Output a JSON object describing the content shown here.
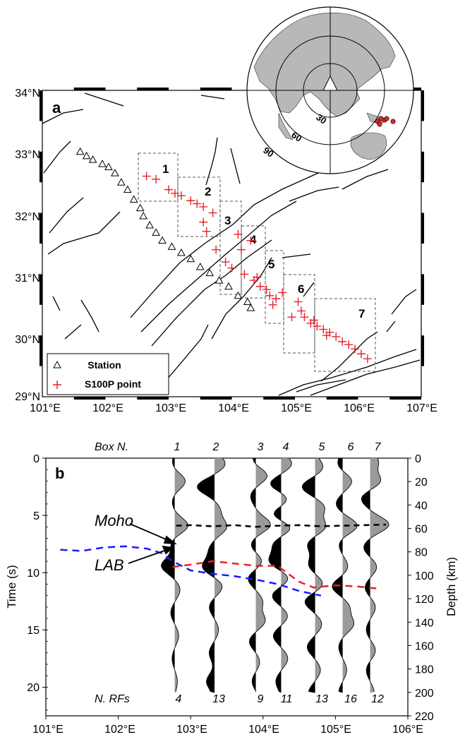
{
  "panel_a": {
    "label": "a",
    "lat_ticks": [
      "29°N",
      "30°N",
      "31°N",
      "32°N",
      "33°N",
      "34°N"
    ],
    "lon_ticks": [
      "101°E",
      "102°E",
      "103°E",
      "104°E",
      "105°E",
      "106°E",
      "107°E"
    ],
    "legend": {
      "station": "Station",
      "point": "S100P point"
    },
    "boxes": [
      "1",
      "2",
      "3",
      "4",
      "5",
      "6",
      "7"
    ],
    "inset": {
      "ring_labels": [
        "30",
        "60",
        "90"
      ]
    }
  },
  "panel_b": {
    "label": "b",
    "box_header": "Box N.",
    "box_numbers": [
      "1",
      "2",
      "3",
      "4",
      "5",
      "6",
      "7"
    ],
    "rf_header": "N. RFs",
    "rf_counts": [
      "4",
      "13",
      "9",
      "11",
      "13",
      "16",
      "12"
    ],
    "moho_label": "Moho",
    "lab_label": "LAB",
    "ylabel_left": "Time (s)",
    "ylabel_right": "Depth (km)",
    "time_ticks": [
      "0",
      "5",
      "10",
      "15",
      "20"
    ],
    "depth_ticks": [
      "0",
      "20",
      "40",
      "60",
      "80",
      "100",
      "120",
      "140",
      "160",
      "180",
      "200",
      "220"
    ],
    "lon_ticks": [
      "101°E",
      "102°E",
      "103°E",
      "104°E",
      "105°E",
      "106°E"
    ]
  },
  "colors": {
    "red": "#e8212b",
    "blue": "#1a1aff",
    "gray": "#9a9a9a",
    "black": "#000000"
  },
  "chart_data": [
    {
      "type": "scatter",
      "title": "",
      "xlabel": "",
      "ylabel": "",
      "xlim": [
        101,
        107
      ],
      "ylim": [
        29,
        34
      ],
      "series": [
        {
          "name": "Station",
          "points": [
            [
              101.6,
              33.0
            ],
            [
              101.7,
              32.93
            ],
            [
              101.8,
              32.87
            ],
            [
              101.95,
              32.8
            ],
            [
              102.05,
              32.75
            ],
            [
              102.15,
              32.65
            ],
            [
              102.25,
              32.5
            ],
            [
              102.35,
              32.38
            ],
            [
              102.45,
              32.22
            ],
            [
              102.55,
              32.08
            ],
            [
              102.6,
              31.95
            ],
            [
              102.7,
              31.8
            ],
            [
              102.8,
              31.68
            ],
            [
              102.9,
              31.55
            ],
            [
              103.05,
              31.45
            ],
            [
              103.2,
              31.35
            ],
            [
              103.35,
              31.25
            ],
            [
              103.5,
              31.12
            ],
            [
              103.65,
              31.02
            ],
            [
              103.8,
              30.9
            ],
            [
              103.95,
              30.8
            ],
            [
              104.1,
              30.65
            ],
            [
              104.25,
              30.55
            ],
            [
              104.3,
              30.45
            ]
          ]
        },
        {
          "name": "S100P point",
          "points": [
            [
              102.65,
              32.6
            ],
            [
              102.8,
              32.55
            ],
            [
              103.0,
              32.38
            ],
            [
              103.1,
              32.32
            ],
            [
              103.2,
              32.28
            ],
            [
              103.35,
              32.2
            ],
            [
              103.45,
              32.15
            ],
            [
              103.55,
              32.1
            ],
            [
              103.7,
              32.0
            ],
            [
              103.55,
              31.85
            ],
            [
              103.6,
              31.7
            ],
            [
              103.75,
              31.4
            ],
            [
              103.9,
              31.2
            ],
            [
              104.0,
              31.1
            ],
            [
              104.1,
              31.65
            ],
            [
              104.15,
              31.4
            ],
            [
              104.3,
              31.55
            ],
            [
              104.2,
              31.0
            ],
            [
              104.35,
              30.9
            ],
            [
              104.45,
              30.8
            ],
            [
              104.55,
              30.75
            ],
            [
              104.6,
              30.65
            ],
            [
              104.7,
              30.6
            ],
            [
              104.8,
              30.7
            ],
            [
              104.95,
              30.3
            ],
            [
              105.05,
              30.55
            ],
            [
              105.15,
              30.3
            ],
            [
              105.25,
              30.2
            ],
            [
              105.35,
              30.15
            ],
            [
              105.45,
              30.1
            ],
            [
              105.55,
              30.05
            ],
            [
              105.65,
              29.98
            ],
            [
              105.75,
              29.9
            ],
            [
              105.85,
              29.85
            ],
            [
              105.95,
              29.78
            ],
            [
              106.05,
              29.7
            ],
            [
              106.15,
              29.62
            ],
            [
              104.4,
              30.95
            ],
            [
              104.65,
              30.5
            ],
            [
              105.1,
              30.4
            ],
            [
              105.3,
              30.25
            ],
            [
              105.5,
              30.0
            ]
          ]
        }
      ]
    },
    {
      "type": "line",
      "title": "",
      "xlabel": "",
      "ylabel": "Time (s)",
      "xlim": [
        101,
        106
      ],
      "ylim": [
        0,
        22.5
      ],
      "y2_label": "Depth (km)",
      "y2lim": [
        0,
        220
      ],
      "series": [
        {
          "name": "Moho",
          "x": [
            102.8,
            103.0,
            103.3,
            103.6,
            103.9,
            104.2,
            104.5,
            104.8,
            105.1,
            105.4,
            105.7
          ],
          "y": [
            5.9,
            5.85,
            5.95,
            5.85,
            6.0,
            5.9,
            5.85,
            5.95,
            5.9,
            5.85,
            5.8
          ]
        },
        {
          "name": "LAB",
          "x": [
            102.75,
            103.0,
            103.3,
            103.6,
            103.9,
            104.2,
            104.5,
            104.7,
            105.0,
            105.3,
            105.6
          ],
          "y": [
            9.5,
            9.3,
            9.0,
            9.2,
            9.4,
            9.4,
            10.8,
            11.3,
            11.1,
            11.2,
            11.4
          ]
        },
        {
          "x": [
            101.2,
            101.5,
            101.8,
            102.1,
            102.4,
            102.6,
            102.75,
            103.0,
            103.3,
            103.6,
            103.9,
            104.2,
            104.5,
            104.8
          ],
          "y": [
            8.0,
            8.1,
            7.8,
            7.7,
            7.9,
            8.3,
            9.0,
            9.8,
            10.1,
            10.3,
            10.6,
            11.0,
            11.6,
            12.0
          ]
        }
      ]
    }
  ]
}
